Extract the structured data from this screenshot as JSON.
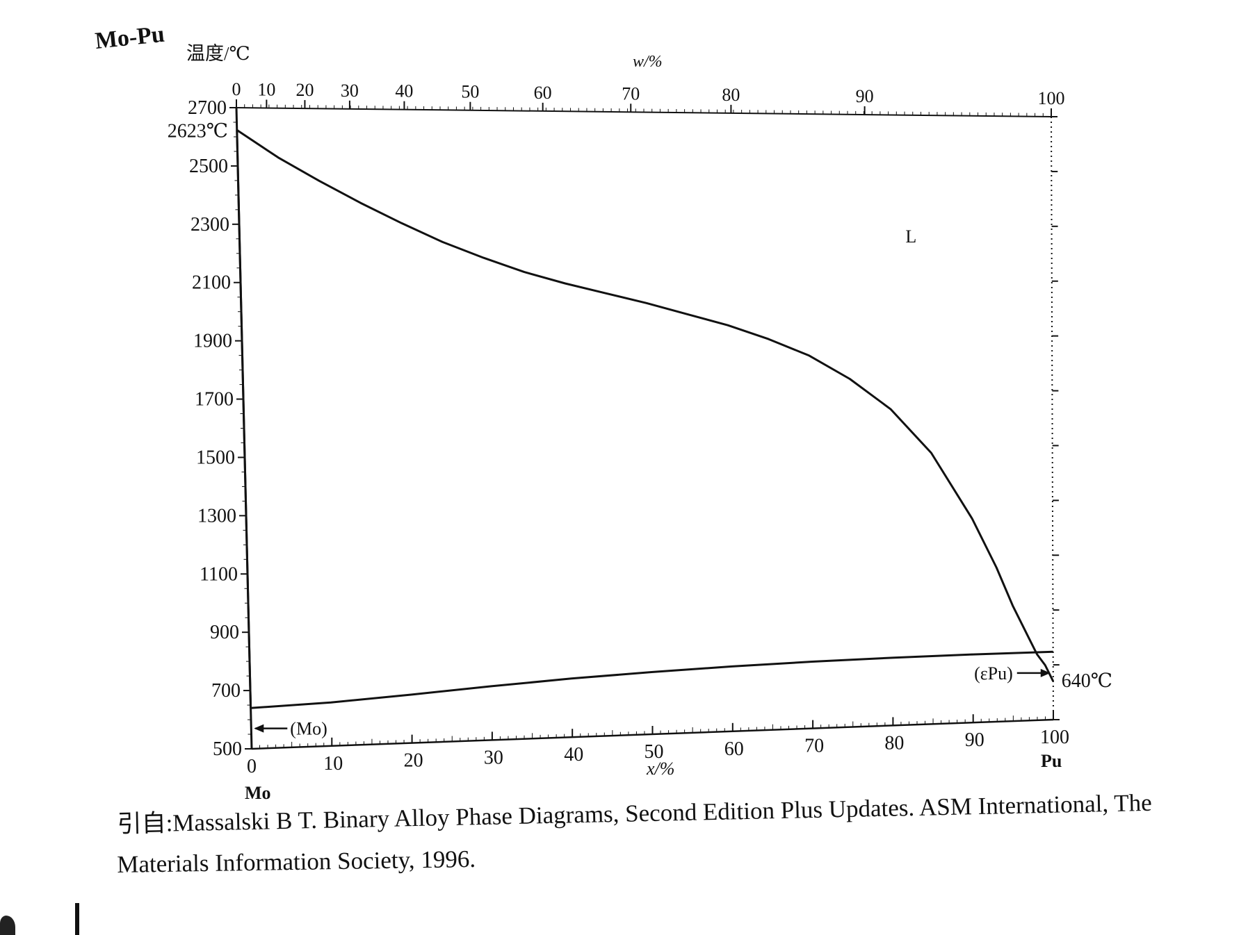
{
  "chart_data": {
    "type": "line",
    "title": "Mo-Pu",
    "ylabel": "温度/℃",
    "xlabel": "x/%",
    "x2label": "w/%",
    "ylim": [
      500,
      2700
    ],
    "xlim": [
      0,
      100
    ],
    "yticks": [
      2700,
      2500,
      2300,
      2100,
      1900,
      1700,
      1500,
      1300,
      1100,
      900,
      700,
      500
    ],
    "xticks": [
      0,
      10,
      20,
      30,
      40,
      50,
      60,
      70,
      80,
      90,
      100
    ],
    "x2ticks": [
      0,
      10,
      20,
      30,
      40,
      50,
      60,
      70,
      80,
      90,
      100
    ],
    "x2_positions_at": [
      0,
      3.7,
      8.4,
      13.9,
      20.6,
      28.7,
      37.6,
      48.4,
      60.7,
      77.1,
      100
    ],
    "left_component": "Mo",
    "right_component": "Pu",
    "series": [
      {
        "x": [
          0,
          5,
          10,
          15,
          20,
          25,
          30,
          35,
          40,
          45,
          50,
          55,
          60,
          65,
          70,
          75,
          80,
          85,
          90,
          93,
          95,
          97,
          98,
          99,
          100
        ],
        "y": [
          2623,
          2530,
          2450,
          2375,
          2305,
          2240,
          2185,
          2135,
          2095,
          2060,
          2025,
          1985,
          1945,
          1895,
          1835,
          1750,
          1640,
          1480,
          1240,
          1060,
          920,
          800,
          740,
          700,
          640
        ]
      },
      {
        "x": [
          0,
          10,
          20,
          30,
          40,
          50,
          60,
          70,
          80,
          90,
          100
        ],
        "y": [
          640,
          650,
          668,
          688,
          706,
          720,
          731,
          739,
          744,
          747,
          748
        ]
      },
      {
        "x": [
          0,
          0
        ],
        "y": [
          2623,
          640
        ]
      }
    ],
    "annotations": [
      {
        "text": "2623℃",
        "x": 0,
        "y": 2623
      },
      {
        "text": "640℃",
        "x": 100,
        "y": 640
      },
      {
        "text": "L",
        "x": 82,
        "y": 2240
      },
      {
        "text": "(Mo)",
        "x": 0,
        "y": 570
      },
      {
        "text": "(εPu)",
        "x": 100,
        "y": 670
      }
    ]
  },
  "caption": {
    "line1": "引自:Massalski B T.  Binary Alloy Phase Diagrams, Second Edition Plus Updates.  ASM International, The",
    "line2": "Materials Information Society, 1996."
  },
  "colors": {
    "ink": "#111111",
    "background": "#ffffff"
  }
}
